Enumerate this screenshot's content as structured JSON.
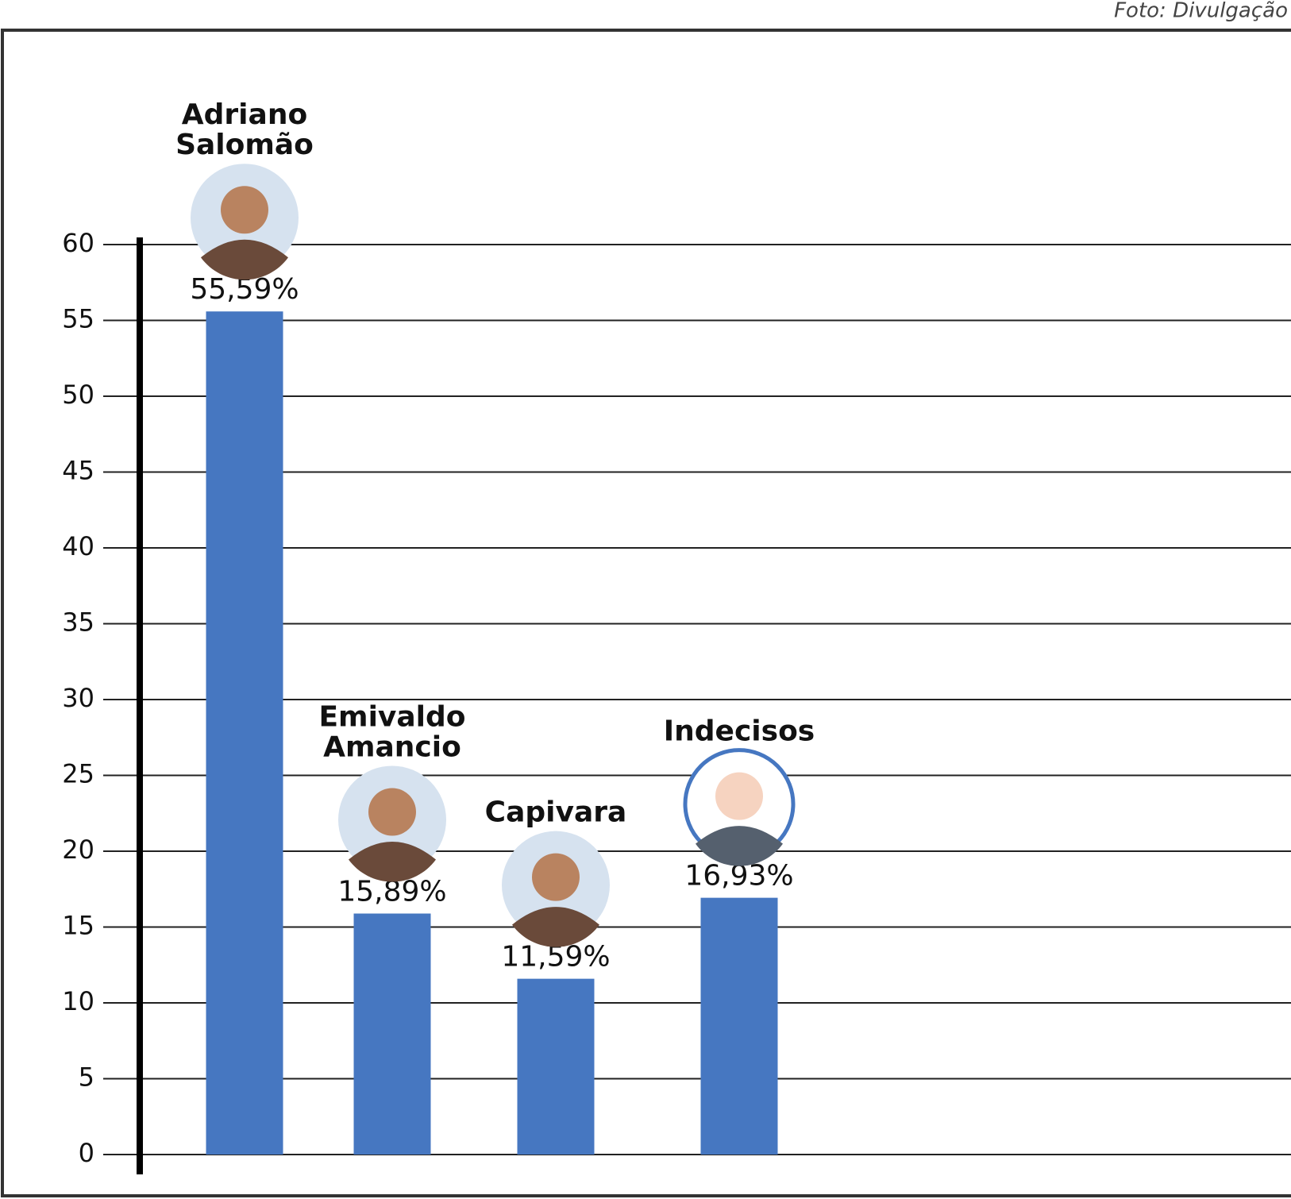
{
  "chart_data": {
    "type": "bar",
    "credit": "Foto: Divulgação",
    "categories": [
      "Adriano Salomão",
      "Emivaldo Amancio",
      "Capivara",
      "Indecisos"
    ],
    "values": [
      55.59,
      15.89,
      11.59,
      16.93
    ],
    "value_labels": [
      "55,59%",
      "15,89%",
      "11,59%",
      "16,93%"
    ],
    "color": "#4677c1",
    "ylim": [
      0,
      60
    ],
    "yticks": [
      0,
      5,
      10,
      15,
      20,
      25,
      30,
      35,
      40,
      45,
      50,
      55,
      60
    ],
    "grid": true
  }
}
